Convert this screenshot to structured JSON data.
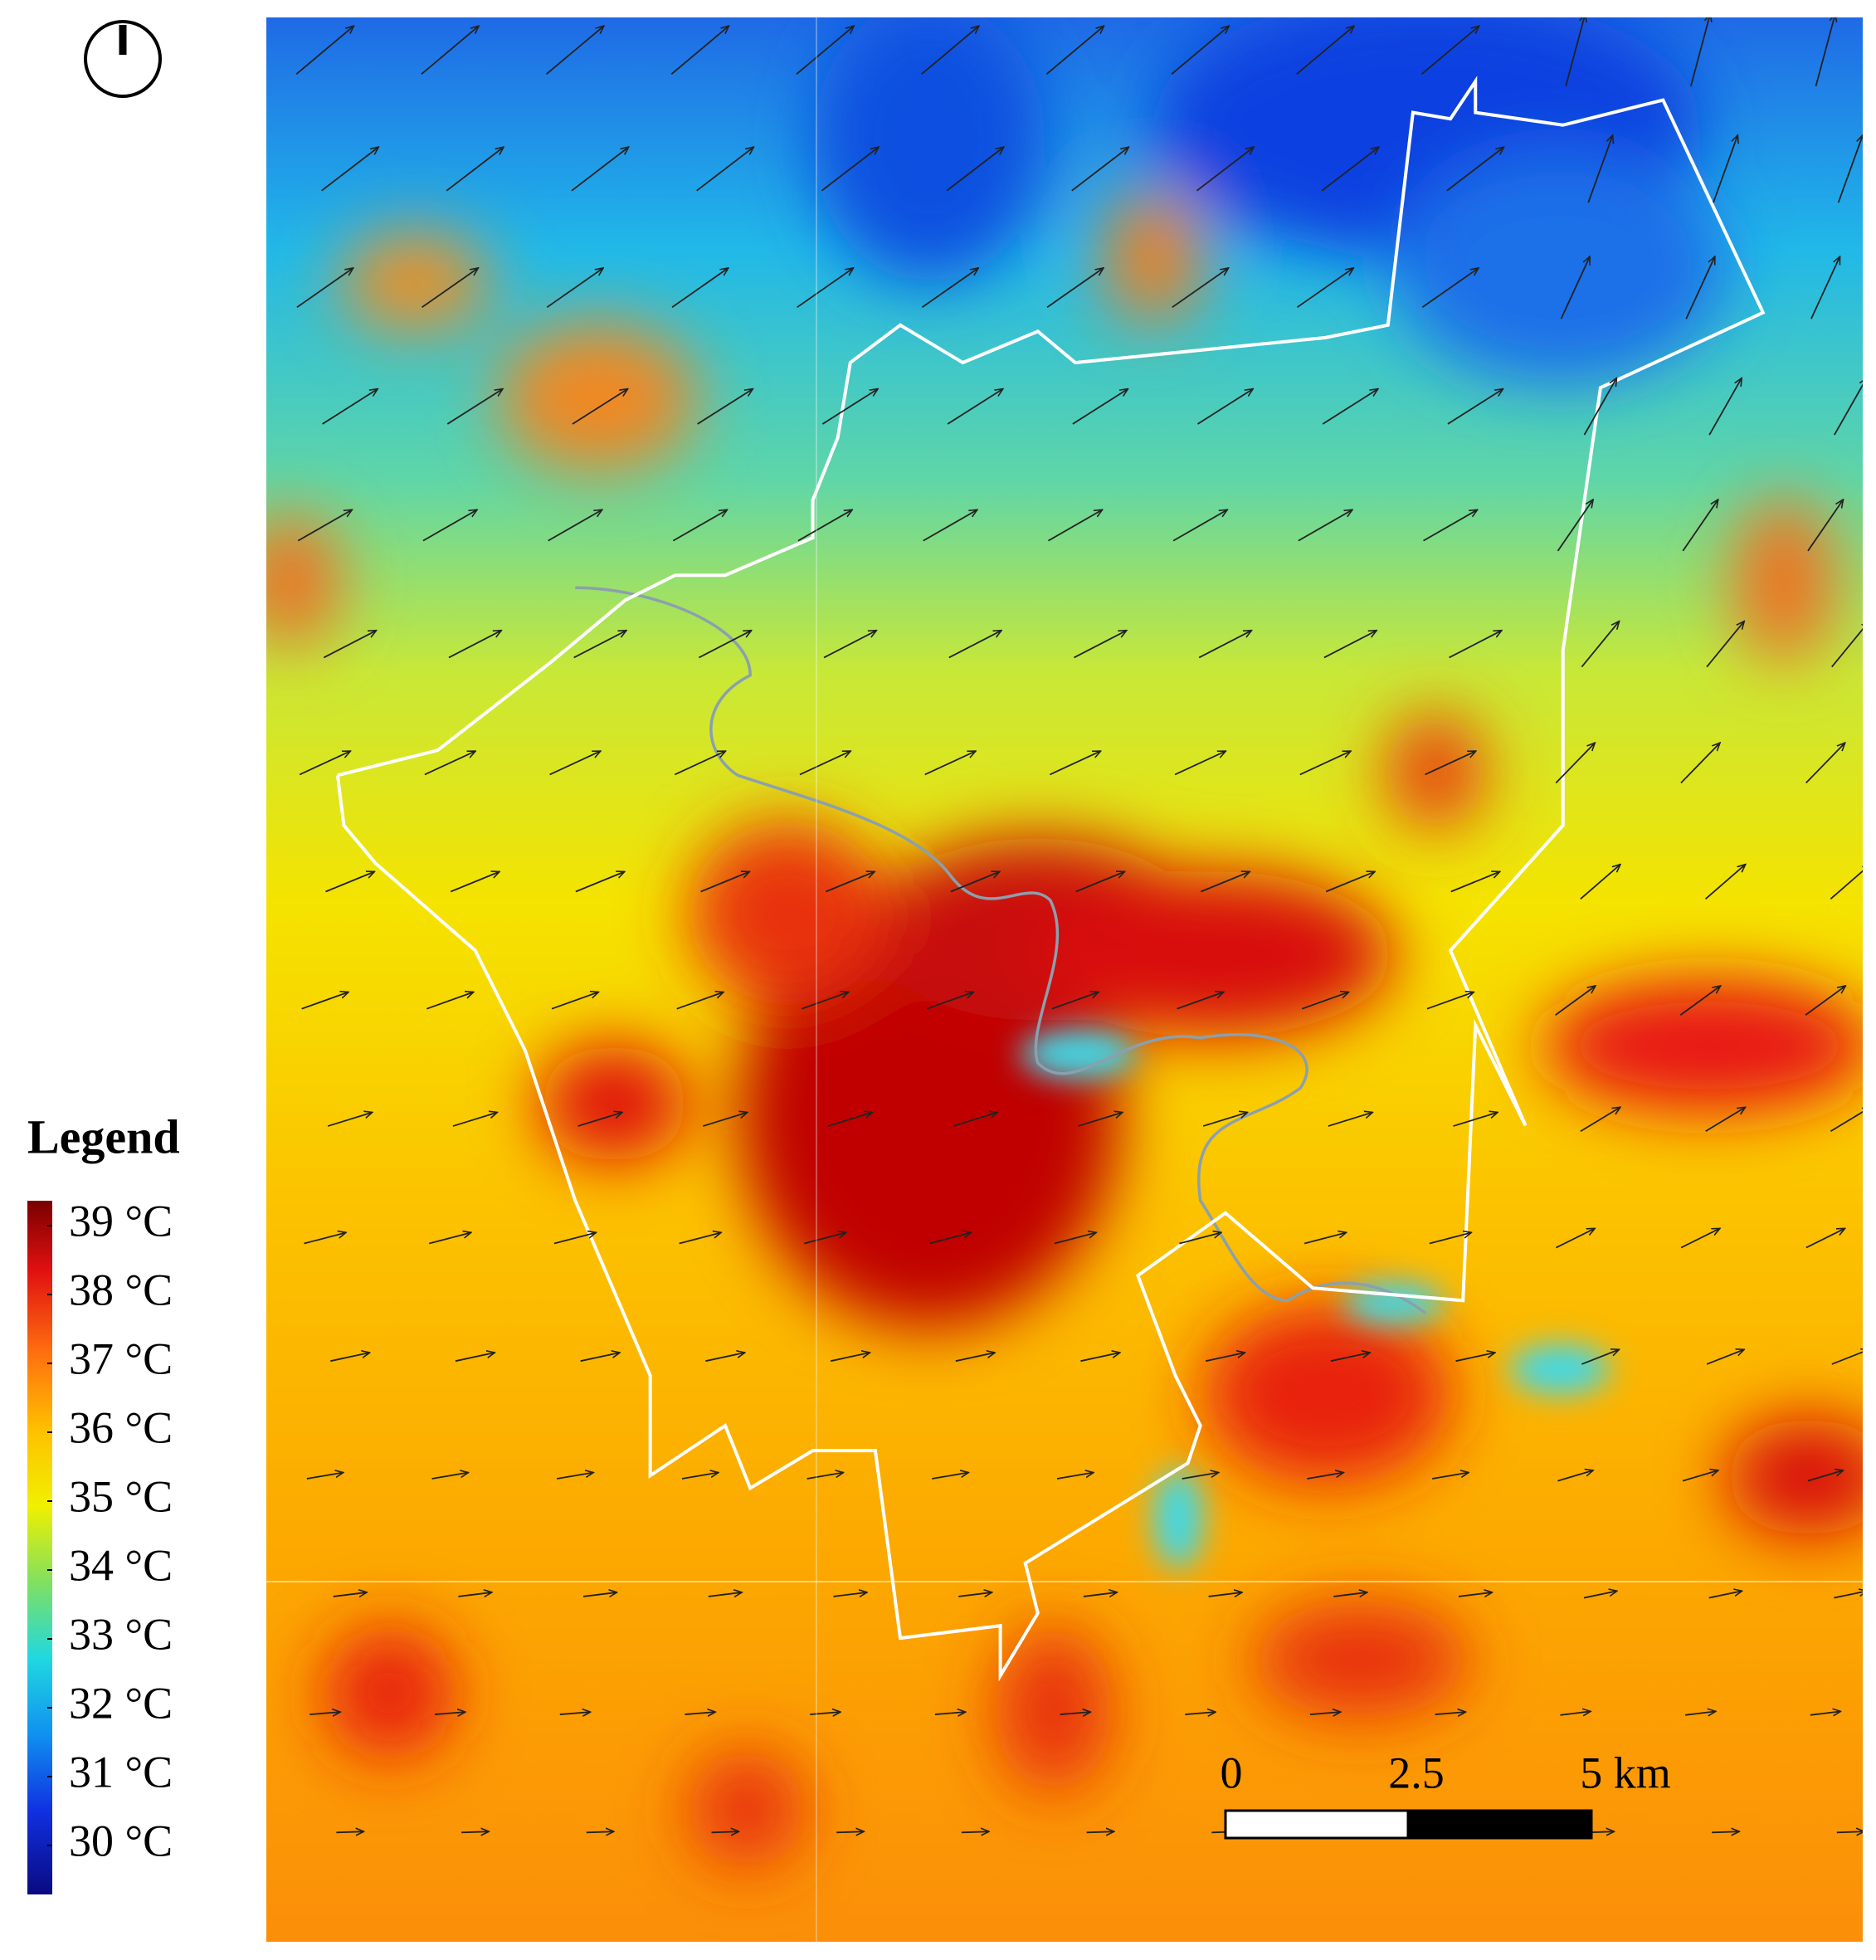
{
  "legend": {
    "title": "Legend",
    "items": [
      "39 °C",
      "38 °C",
      "37 °C",
      "36 °C",
      "35 °C",
      "34 °C",
      "33 °C",
      "32 °C",
      "31 °C",
      "30 °C"
    ]
  },
  "scale_bar": {
    "labels": [
      "0",
      "2.5",
      "5 km"
    ]
  }
}
